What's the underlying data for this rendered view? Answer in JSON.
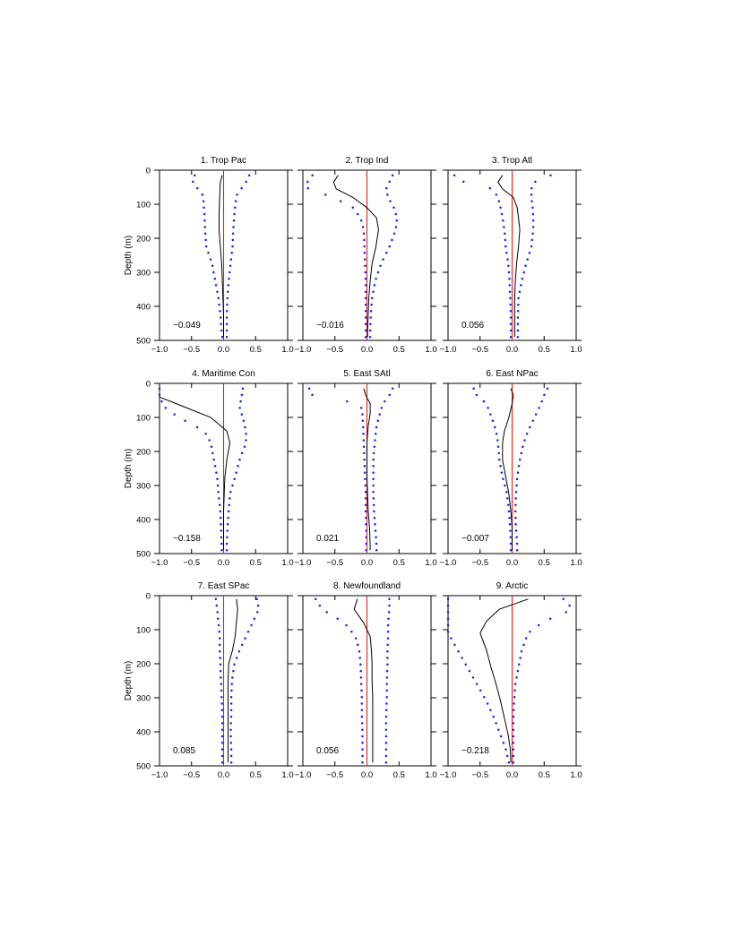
{
  "chart_data": {
    "type": "line",
    "layout": "3x3 grid of depth profiles",
    "xlim": [
      -1.0,
      1.0
    ],
    "ylim": [
      500,
      0
    ],
    "x_ticks": [
      -1.0,
      -0.5,
      0.0,
      0.5,
      1.0
    ],
    "x_tick_labels": [
      "−1.0",
      "−0.5",
      "0.0",
      "0.5",
      "1.0"
    ],
    "y_ticks": [
      0,
      100,
      200,
      300,
      400,
      500
    ],
    "y_tick_labels": [
      "0",
      "100",
      "200",
      "300",
      "400",
      "500"
    ],
    "ylabel": "Depth (m)",
    "series_styles": {
      "mean": "solid black line",
      "bounds": "blue dots",
      "zero": "red vertical line at 0"
    },
    "panels": [
      {
        "title": "1. Trop Pac",
        "value_label": "−0.049",
        "depth": [
          15,
          35,
          75,
          125,
          175,
          225,
          275,
          325,
          375,
          425,
          475,
          490
        ],
        "mean": [
          -0.02,
          -0.05,
          -0.06,
          -0.07,
          -0.07,
          -0.05,
          -0.03,
          -0.02,
          -0.01,
          0.0,
          0.0,
          0.0
        ],
        "lower": [
          -0.45,
          -0.48,
          -0.32,
          -0.3,
          -0.29,
          -0.27,
          -0.18,
          -0.13,
          -0.08,
          -0.05,
          -0.03,
          -0.02
        ],
        "upper": [
          0.4,
          0.35,
          0.2,
          0.17,
          0.15,
          0.14,
          0.11,
          0.08,
          0.06,
          0.05,
          0.05,
          0.05
        ]
      },
      {
        "title": "2. Trop Ind",
        "value_label": "−0.016",
        "depth": [
          15,
          35,
          55,
          80,
          110,
          140,
          175,
          225,
          275,
          325,
          375,
          425,
          475,
          490
        ],
        "mean": [
          -0.45,
          -0.52,
          -0.48,
          -0.22,
          0.0,
          0.15,
          0.18,
          0.14,
          0.08,
          0.05,
          0.03,
          0.02,
          0.01,
          0.01
        ],
        "lower": [
          -0.85,
          -0.93,
          -0.92,
          -0.52,
          -0.22,
          -0.1,
          -0.05,
          -0.04,
          -0.03,
          -0.02,
          -0.02,
          -0.02,
          -0.02,
          -0.02
        ],
        "upper": [
          0.4,
          0.35,
          0.3,
          0.33,
          0.42,
          0.47,
          0.45,
          0.35,
          0.22,
          0.13,
          0.08,
          0.06,
          0.05,
          0.05
        ]
      },
      {
        "title": "3. Trop Atl",
        "value_label": "0.056",
        "depth": [
          15,
          35,
          55,
          80,
          110,
          140,
          175,
          225,
          275,
          325,
          375,
          425,
          475,
          490
        ],
        "mean": [
          -0.15,
          -0.22,
          -0.15,
          0.02,
          0.08,
          0.1,
          0.12,
          0.1,
          0.07,
          0.05,
          0.04,
          0.04,
          0.04,
          0.04
        ],
        "lower": [
          -0.9,
          -0.75,
          -0.3,
          -0.22,
          -0.18,
          -0.15,
          -0.12,
          -0.1,
          -0.06,
          -0.04,
          -0.03,
          -0.02,
          -0.02,
          -0.02
        ],
        "upper": [
          0.6,
          0.35,
          0.3,
          0.3,
          0.32,
          0.33,
          0.33,
          0.3,
          0.22,
          0.15,
          0.1,
          0.09,
          0.09,
          0.09
        ]
      },
      {
        "title": "4. Maritime Con",
        "value_label": "−0.158",
        "depth": [
          15,
          40,
          70,
          100,
          140,
          175,
          225,
          275,
          325,
          375,
          425,
          475,
          490
        ],
        "mean": [
          -1.0,
          -1.0,
          -0.6,
          -0.2,
          0.05,
          0.1,
          0.05,
          0.02,
          0.01,
          0.0,
          0.0,
          0.0,
          0.0
        ],
        "lower": [
          -1.0,
          -1.0,
          -0.92,
          -0.7,
          -0.3,
          -0.2,
          -0.15,
          -0.1,
          -0.08,
          -0.05,
          -0.04,
          -0.03,
          -0.03
        ],
        "upper": [
          0.3,
          0.28,
          0.25,
          0.3,
          0.35,
          0.35,
          0.25,
          0.18,
          0.1,
          0.08,
          0.06,
          0.05,
          0.05
        ]
      },
      {
        "title": "5. East SAtl",
        "value_label": "0.021",
        "depth": [
          15,
          35,
          60,
          90,
          125,
          175,
          225,
          275,
          325,
          375,
          425,
          475,
          490
        ],
        "mean": [
          -0.05,
          -0.02,
          0.05,
          0.05,
          0.02,
          0.0,
          0.0,
          0.0,
          0.01,
          0.02,
          0.04,
          0.05,
          0.05
        ],
        "lower": [
          -0.9,
          -0.85,
          -0.1,
          -0.07,
          -0.06,
          -0.05,
          -0.04,
          -0.03,
          -0.02,
          -0.02,
          -0.01,
          -0.01,
          -0.01
        ],
        "upper": [
          0.4,
          0.35,
          0.25,
          0.2,
          0.15,
          0.12,
          0.1,
          0.1,
          0.1,
          0.11,
          0.13,
          0.15,
          0.15
        ]
      },
      {
        "title": "6. East NPac",
        "value_label": "−0.007",
        "depth": [
          15,
          35,
          60,
          100,
          140,
          175,
          225,
          275,
          325,
          375,
          425,
          475,
          490
        ],
        "mean": [
          -0.02,
          0.02,
          0.0,
          -0.05,
          -0.12,
          -0.15,
          -0.15,
          -0.1,
          -0.05,
          -0.02,
          0.0,
          0.0,
          0.0
        ],
        "lower": [
          -0.6,
          -0.55,
          -0.4,
          -0.32,
          -0.25,
          -0.22,
          -0.2,
          -0.15,
          -0.08,
          -0.05,
          -0.03,
          -0.02,
          -0.02
        ],
        "upper": [
          0.55,
          0.5,
          0.45,
          0.35,
          0.25,
          0.18,
          0.12,
          0.08,
          0.06,
          0.05,
          0.06,
          0.08,
          0.08
        ]
      },
      {
        "title": "7. East SPac",
        "value_label": "0.085",
        "depth": [
          10,
          40,
          80,
          120,
          160,
          200,
          250,
          300,
          350,
          400,
          450,
          490
        ],
        "mean": [
          0.2,
          0.22,
          0.2,
          0.18,
          0.14,
          0.08,
          0.07,
          0.07,
          0.07,
          0.07,
          0.07,
          0.07
        ],
        "lower": [
          -0.12,
          -0.1,
          -0.08,
          -0.06,
          -0.06,
          -0.05,
          -0.04,
          -0.03,
          -0.02,
          -0.02,
          -0.02,
          -0.02
        ],
        "upper": [
          0.52,
          0.55,
          0.45,
          0.35,
          0.25,
          0.17,
          0.13,
          0.12,
          0.12,
          0.11,
          0.12,
          0.12
        ]
      },
      {
        "title": "8. Newfoundland",
        "value_label": "0.056",
        "depth": [
          10,
          40,
          80,
          120,
          160,
          200,
          250,
          300,
          350,
          400,
          450,
          490
        ],
        "mean": [
          -0.15,
          -0.2,
          -0.05,
          0.05,
          0.07,
          0.08,
          0.08,
          0.09,
          0.09,
          0.09,
          0.09,
          0.09
        ],
        "lower": [
          -0.8,
          -0.7,
          -0.35,
          -0.18,
          -0.12,
          -0.1,
          -0.09,
          -0.08,
          -0.08,
          -0.07,
          -0.07,
          -0.07
        ],
        "upper": [
          0.35,
          0.35,
          0.33,
          0.33,
          0.32,
          0.32,
          0.31,
          0.31,
          0.3,
          0.3,
          0.3,
          0.3
        ]
      },
      {
        "title": "9. Arctic",
        "value_label": "−0.218",
        "depth": [
          10,
          40,
          75,
          110,
          160,
          210,
          260,
          310,
          360,
          410,
          450,
          490
        ],
        "mean": [
          0.25,
          -0.2,
          -0.4,
          -0.5,
          -0.4,
          -0.33,
          -0.25,
          -0.18,
          -0.12,
          -0.06,
          -0.03,
          -0.02
        ],
        "lower": [
          -1.0,
          -1.0,
          -1.0,
          -1.0,
          -0.85,
          -0.7,
          -0.55,
          -0.4,
          -0.28,
          -0.18,
          -0.1,
          -0.05
        ],
        "upper": [
          0.8,
          0.95,
          0.5,
          0.25,
          0.15,
          0.1,
          0.05,
          0.03,
          0.02,
          0.02,
          0.02,
          0.02
        ]
      }
    ]
  }
}
